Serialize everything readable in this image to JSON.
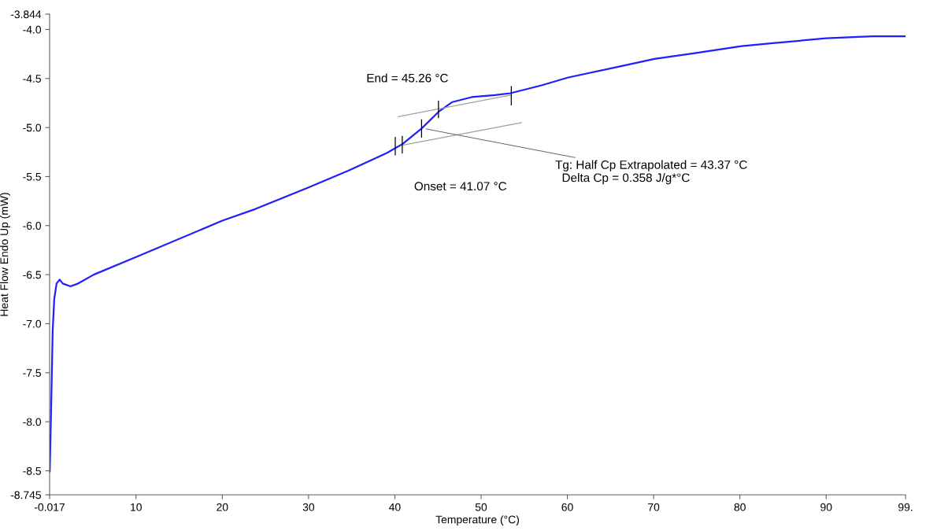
{
  "chart_data": {
    "type": "line",
    "xlabel": "Temperature (°C)",
    "ylabel": "Heat Flow Endo Up (mW)",
    "xlim": [
      -0.017,
      99.2
    ],
    "ylim": [
      -8.745,
      -3.844
    ],
    "xticks": [
      -0.017,
      10,
      20,
      30,
      40,
      50,
      60,
      70,
      80,
      90,
      {
        "value": 99.2,
        "label": "99."
      }
    ],
    "yticks": [
      -8.745,
      -8.5,
      {
        "value": -8.0,
        "label": "-8.0"
      },
      -7.5,
      {
        "value": -7.0,
        "label": "-7.0"
      },
      -6.5,
      {
        "value": -6.0,
        "label": "-6.0"
      },
      -5.5,
      {
        "value": -5.0,
        "label": "-5.0"
      },
      -4.5,
      {
        "value": -4.0,
        "label": "-4.0"
      },
      -3.844
    ],
    "grid": false,
    "legend": false,
    "series": [
      {
        "color": "#1f1fff",
        "x": [
          0,
          0.16,
          0.34,
          0.52,
          0.79,
          1.15,
          1.5,
          2.4,
          3.3,
          5.1,
          10.0,
          20.0,
          23.86,
          30.0,
          34.6,
          39.07,
          40.86,
          43.1,
          45.06,
          46.67,
          48.9,
          51.6,
          53.4,
          57.0,
          60.1,
          65.9,
          70.1,
          74.9,
          80.2,
          83.8,
          90.0,
          95.4,
          99.2
        ],
        "values": [
          -8.51,
          -7.87,
          -7.07,
          -6.75,
          -6.59,
          -6.55,
          -6.59,
          -6.62,
          -6.59,
          -6.5,
          -6.32,
          -5.95,
          -5.83,
          -5.61,
          -5.44,
          -5.26,
          -5.17,
          -5.01,
          -4.84,
          -4.74,
          -4.69,
          -4.67,
          -4.65,
          -4.57,
          -4.49,
          -4.38,
          -4.3,
          -4.24,
          -4.17,
          -4.14,
          -4.09,
          -4.07,
          -4.07
        ]
      },
      {
        "color": "#a0a0a0",
        "x": [
          40.86,
          54.7
        ],
        "values": [
          -5.18,
          -4.95
        ]
      },
      {
        "color": "#a0a0a0",
        "x": [
          40.4,
          53.4
        ],
        "values": [
          -4.89,
          -4.67
        ]
      },
      {
        "color": "#000000",
        "x": [
          40.05,
          40.05
        ],
        "values": [
          -5.28,
          -5.1
        ]
      },
      {
        "color": "#000000",
        "x": [
          40.86,
          40.86
        ],
        "values": [
          -5.26,
          -5.09
        ]
      },
      {
        "color": "#000000",
        "x": [
          43.1,
          43.1
        ],
        "values": [
          -5.1,
          -4.92
        ]
      },
      {
        "color": "#000000",
        "x": [
          45.06,
          45.06
        ],
        "values": [
          -4.9,
          -4.73
        ]
      },
      {
        "color": "#000000",
        "x": [
          53.5,
          53.5
        ],
        "values": [
          -4.77,
          -4.58
        ]
      }
    ],
    "annotations": [
      {
        "text": "End = 45.26 °C",
        "x": 45.26,
        "y": -4.84
      },
      "Onset = 41.07 °C",
      {
        "text": "Tg: Half Cp Extrapolated = 43.37 °C\n  Delta Cp = 0.358 J/g*°C",
        "x": 43.37,
        "y": -5.01
      }
    ]
  }
}
